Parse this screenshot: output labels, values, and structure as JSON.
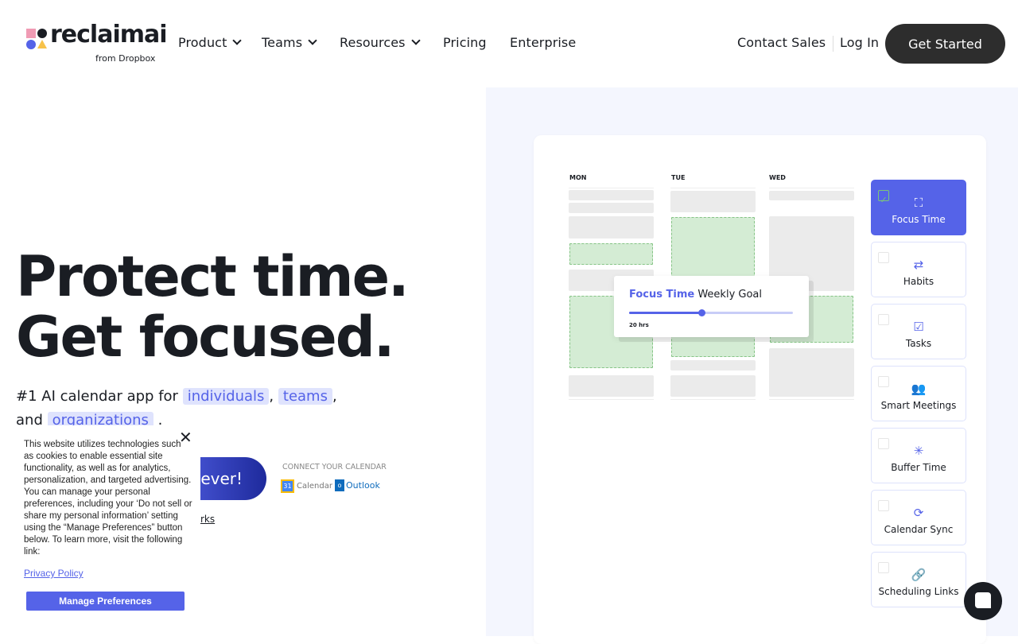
{
  "header": {
    "logo_text": "reclaimai",
    "logo_sub": "from Dropbox",
    "nav": [
      {
        "label": "Product",
        "dropdown": true
      },
      {
        "label": "Teams",
        "dropdown": true
      },
      {
        "label": "Resources",
        "dropdown": true
      },
      {
        "label": "Pricing"
      },
      {
        "label": "Enterprise"
      }
    ],
    "contact_sales": "Contact Sales",
    "log_in": "Log In",
    "get_started": "Get Started"
  },
  "hero": {
    "line1": "Protect time.",
    "line2": "Get focused.",
    "sub_prefix": "#1 AI calendar app for",
    "tag1": "individuals",
    "comma1": ",",
    "tag2": "teams",
    "comma2": ",",
    "and": "and",
    "tag3": "organizations",
    "period": ".",
    "cta_fragment": "ever!",
    "link_fragment": "rks",
    "connect_label": "CONNECT YOUR CALENDAR",
    "gcal": "Calendar",
    "outlook": "Outlook"
  },
  "calendar": {
    "days": [
      "MON",
      "TUE",
      "WED"
    ],
    "popup": {
      "title_accent": "Focus Time",
      "title_rest": "Weekly Goal",
      "value_label": "20 hrs",
      "slider_fraction": 0.44
    }
  },
  "features": [
    {
      "label": "Focus Time",
      "icon": "focus-icon",
      "glyph": "⛶",
      "checked": true
    },
    {
      "label": "Habits",
      "icon": "repeat-icon",
      "glyph": "⇄",
      "checked": false
    },
    {
      "label": "Tasks",
      "icon": "clipboard-check-icon",
      "glyph": "☑",
      "checked": false
    },
    {
      "label": "Smart Meetings",
      "icon": "people-icon",
      "glyph": "👥",
      "checked": false
    },
    {
      "label": "Buffer Time",
      "icon": "spinner-icon",
      "glyph": "✳",
      "checked": false
    },
    {
      "label": "Calendar Sync",
      "icon": "sync-icon",
      "glyph": "⟳",
      "checked": false
    },
    {
      "label": "Scheduling Links",
      "icon": "link-icon",
      "glyph": "🔗",
      "checked": false
    }
  ],
  "cookie": {
    "text": "This website utilizes technologies such as cookies to enable essential site functionality, as well as for analytics, personalization, and targeted advertising. You can manage your personal preferences, including your ‘Do not sell or share my personal information’ setting using the “Manage Preferences” button below. To learn more, visit the following link:",
    "privacy_link": "Privacy Policy",
    "manage_button": "Manage Preferences"
  },
  "colors": {
    "accent": "#5563e8",
    "dark": "#2d2d2d",
    "panel_bg": "#f4f6fe",
    "focus_green": "#d4ecd4"
  }
}
